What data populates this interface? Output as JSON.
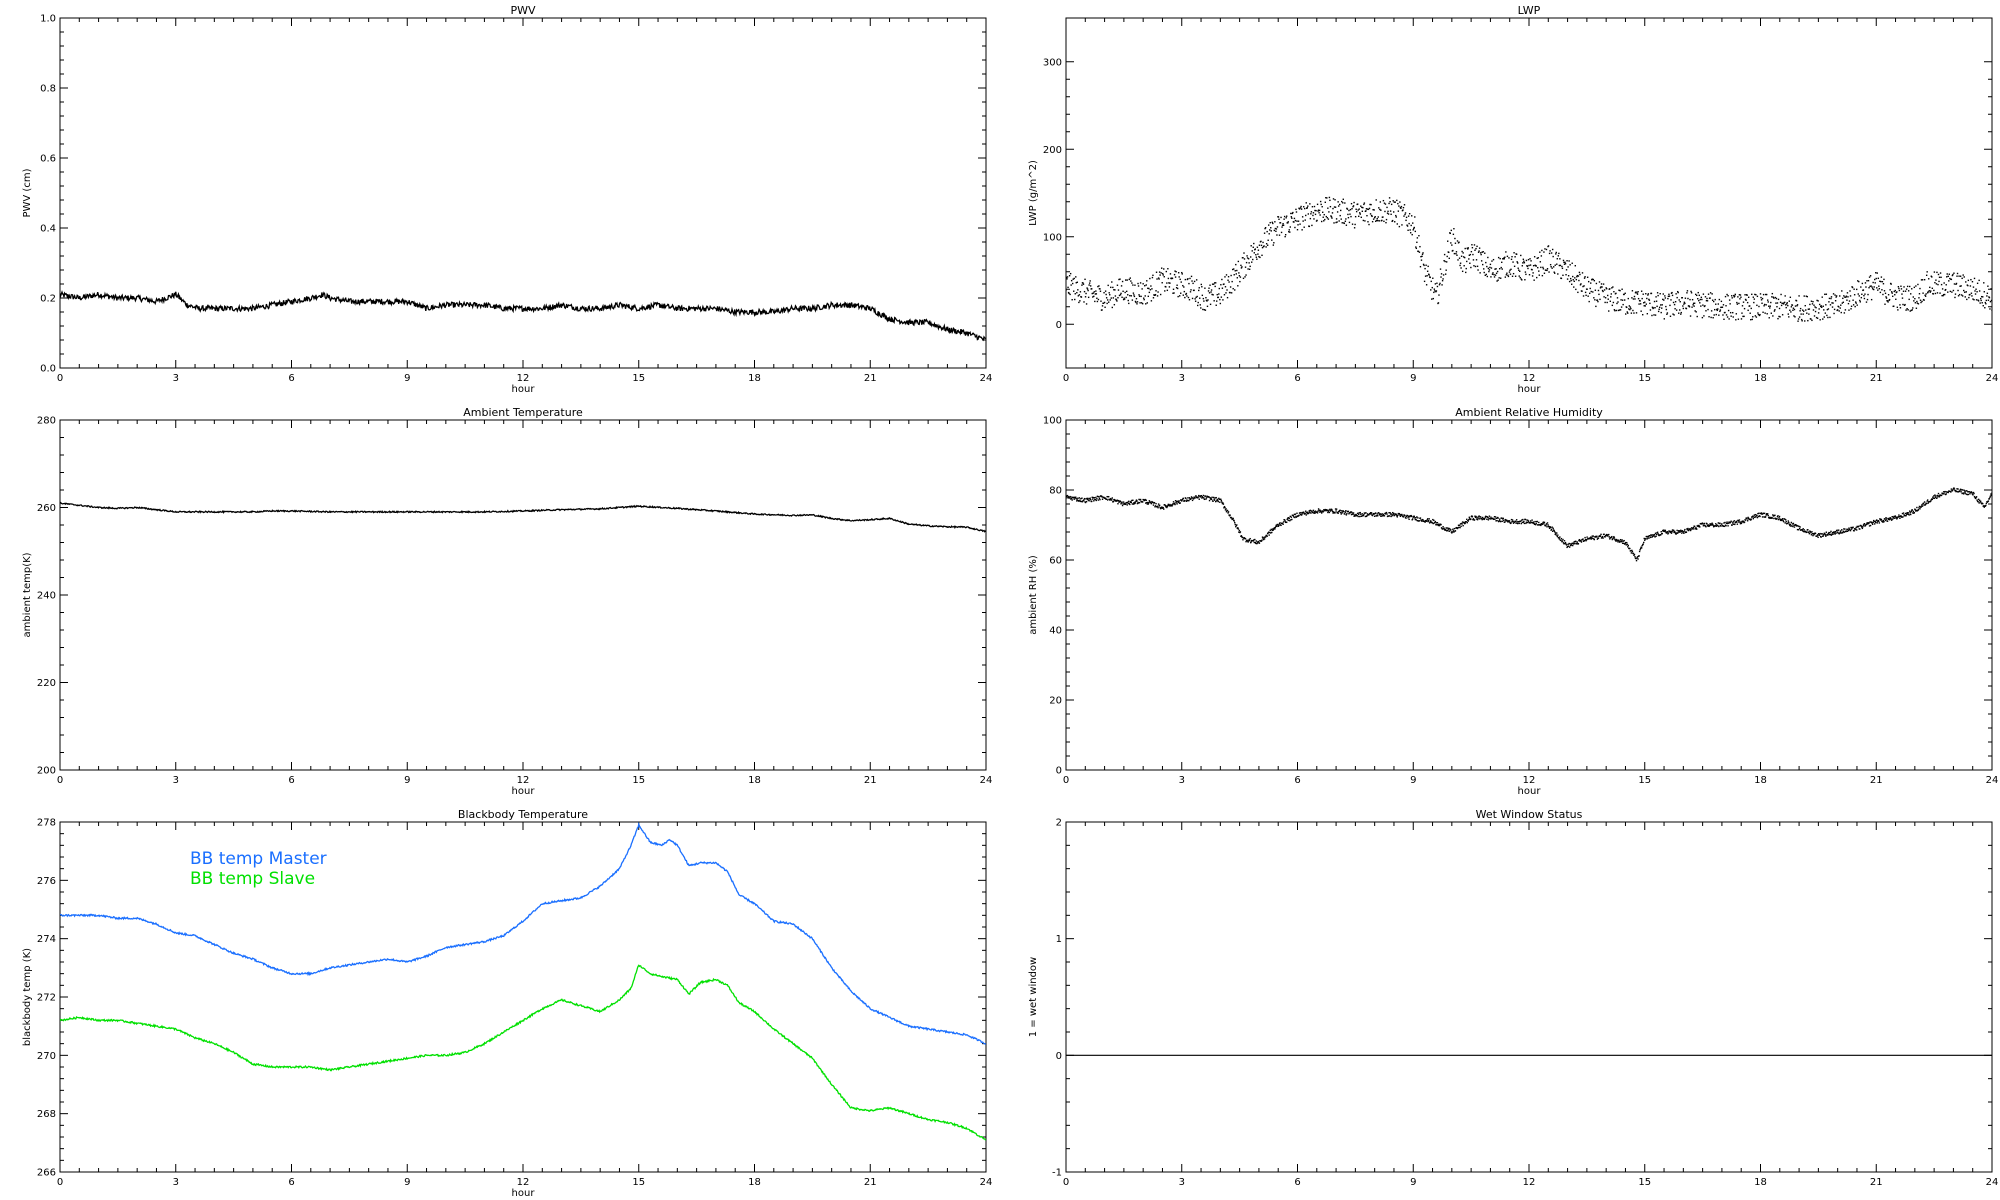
{
  "chart_data": [
    {
      "type": "line",
      "title": "PWV",
      "xlabel": "hour",
      "ylabel": "PWV (cm)",
      "xlim": [
        0,
        24
      ],
      "ylim": [
        0.0,
        1.0
      ],
      "xticks": [
        0,
        3,
        6,
        9,
        12,
        15,
        18,
        21,
        24
      ],
      "yticks": [
        0.0,
        0.2,
        0.4,
        0.6,
        0.8,
        1.0
      ],
      "ytick_labels": [
        "0.0",
        "0.2",
        "0.4",
        "0.6",
        "0.8",
        "1.0"
      ],
      "noise": 0.008,
      "series": [
        {
          "color": "#000000",
          "x": [
            0,
            0.5,
            1,
            1.5,
            2,
            2.5,
            3,
            3.3,
            3.6,
            4,
            4.5,
            5,
            5.5,
            6,
            6.5,
            6.8,
            7,
            7.5,
            8,
            8.5,
            9,
            9.5,
            10,
            10.5,
            11,
            11.5,
            12,
            12.5,
            13,
            13.5,
            14,
            14.5,
            15,
            15.5,
            16,
            16.5,
            17,
            17.5,
            18,
            18.5,
            19,
            19.5,
            20,
            20.5,
            21,
            21.5,
            22,
            22.5,
            23,
            23.5,
            24
          ],
          "y": [
            0.21,
            0.2,
            0.21,
            0.2,
            0.2,
            0.19,
            0.21,
            0.18,
            0.17,
            0.17,
            0.17,
            0.17,
            0.18,
            0.19,
            0.2,
            0.21,
            0.2,
            0.19,
            0.19,
            0.19,
            0.19,
            0.17,
            0.18,
            0.18,
            0.18,
            0.17,
            0.17,
            0.17,
            0.18,
            0.17,
            0.17,
            0.18,
            0.17,
            0.18,
            0.17,
            0.17,
            0.17,
            0.16,
            0.16,
            0.16,
            0.17,
            0.17,
            0.18,
            0.18,
            0.17,
            0.14,
            0.13,
            0.13,
            0.11,
            0.1,
            0.08
          ]
        }
      ]
    },
    {
      "type": "scatter",
      "title": "LWP",
      "xlabel": "hour",
      "ylabel": "LWP (g/m^2)",
      "xlim": [
        0,
        24
      ],
      "ylim": [
        -50,
        350
      ],
      "xticks": [
        0,
        3,
        6,
        9,
        12,
        15,
        18,
        21,
        24
      ],
      "yticks": [
        0,
        100,
        200,
        300
      ],
      "ytick_labels": [
        "0",
        "100",
        "200",
        "300"
      ],
      "noise": 15,
      "series": [
        {
          "color": "#000000",
          "x": [
            0,
            0.3,
            0.6,
            1,
            1.5,
            2,
            2.5,
            3,
            3.3,
            3.6,
            4,
            4.5,
            5,
            5.5,
            6,
            6.5,
            7,
            7.5,
            8,
            8.5,
            9,
            9.3,
            9.6,
            10,
            10.3,
            10.6,
            11,
            11.5,
            12,
            12.5,
            13,
            13.5,
            14,
            14.5,
            15,
            15.5,
            16,
            16.5,
            17,
            17.5,
            18,
            18.5,
            19,
            19.5,
            20,
            20.5,
            21,
            21.3,
            21.6,
            22,
            22.3,
            22.6,
            23,
            23.5,
            24
          ],
          "y": [
            45,
            40,
            35,
            30,
            40,
            35,
            50,
            45,
            40,
            30,
            35,
            60,
            90,
            110,
            120,
            130,
            130,
            125,
            130,
            130,
            115,
            60,
            30,
            100,
            70,
            80,
            60,
            70,
            60,
            75,
            60,
            40,
            30,
            25,
            25,
            20,
            25,
            22,
            20,
            20,
            20,
            20,
            18,
            20,
            20,
            35,
            45,
            35,
            30,
            30,
            45,
            45,
            45,
            40,
            30
          ]
        }
      ]
    },
    {
      "type": "line",
      "title": "Ambient Temperature",
      "xlabel": "hour",
      "ylabel": "ambient temp(K)",
      "xlim": [
        0,
        24
      ],
      "ylim": [
        200,
        280
      ],
      "xticks": [
        0,
        3,
        6,
        9,
        12,
        15,
        18,
        21,
        24
      ],
      "yticks": [
        200,
        220,
        240,
        260,
        280
      ],
      "ytick_labels": [
        "200",
        "220",
        "240",
        "260",
        "280"
      ],
      "noise": 0.15,
      "series": [
        {
          "color": "#000000",
          "x": [
            0,
            0.5,
            1,
            1.5,
            2,
            2.5,
            3,
            4,
            5,
            5.5,
            6,
            7,
            8,
            9,
            10,
            11,
            12,
            13,
            14,
            14.5,
            15,
            16,
            17,
            18,
            19,
            19.5,
            20,
            20.5,
            21,
            21.5,
            22,
            22.5,
            23,
            23.5,
            24
          ],
          "y": [
            261,
            260.5,
            260,
            259.8,
            260,
            259.5,
            259,
            259,
            259,
            259.2,
            259.2,
            259,
            259,
            259,
            259,
            259,
            259.2,
            259.5,
            259.7,
            260,
            260.3,
            259.8,
            259.2,
            258.5,
            258.2,
            258.3,
            257.5,
            257,
            257.2,
            257.5,
            256.2,
            255.8,
            255.6,
            255.5,
            254.5
          ]
        }
      ]
    },
    {
      "type": "scatter",
      "title": "Ambient Relative Humidity",
      "xlabel": "hour",
      "ylabel": "ambient RH (%)",
      "xlim": [
        0,
        24
      ],
      "ylim": [
        0,
        100
      ],
      "xticks": [
        0,
        3,
        6,
        9,
        12,
        15,
        18,
        21,
        24
      ],
      "yticks": [
        0,
        20,
        40,
        60,
        80,
        100
      ],
      "ytick_labels": [
        "0",
        "20",
        "40",
        "60",
        "80",
        "100"
      ],
      "noise": 0.6,
      "series": [
        {
          "color": "#000000",
          "x": [
            0,
            0.5,
            1,
            1.5,
            2,
            2.5,
            3,
            3.5,
            4,
            4.3,
            4.6,
            5,
            5.5,
            6,
            6.5,
            7,
            7.5,
            8,
            8.5,
            9,
            9.5,
            10,
            10.5,
            11,
            11.5,
            12,
            12.5,
            13,
            13.5,
            14,
            14.5,
            14.8,
            15,
            15.5,
            16,
            16.5,
            17,
            17.5,
            18,
            18.5,
            19,
            19.5,
            20,
            20.5,
            21,
            21.5,
            22,
            22.5,
            23,
            23.5,
            23.8,
            24
          ],
          "y": [
            78,
            77,
            78,
            76,
            77,
            75,
            77,
            78,
            77,
            72,
            66,
            65,
            70,
            73,
            74,
            74,
            73,
            73,
            73,
            72,
            71,
            68,
            72,
            72,
            71,
            71,
            70,
            64,
            66,
            67,
            65,
            60,
            66,
            68,
            68,
            70,
            70,
            71,
            73,
            72,
            69,
            67,
            68,
            69,
            71,
            72,
            74,
            78,
            80,
            79,
            75,
            79
          ]
        }
      ]
    },
    {
      "type": "line",
      "title": "Blackbody Temperature",
      "xlabel": "hour",
      "ylabel": "blackbody temp (K)",
      "xlim": [
        0,
        24
      ],
      "ylim": [
        266,
        278
      ],
      "xticks": [
        0,
        3,
        6,
        9,
        12,
        15,
        18,
        21,
        24
      ],
      "yticks": [
        266,
        268,
        270,
        272,
        274,
        276,
        278
      ],
      "ytick_labels": [
        "266",
        "268",
        "270",
        "272",
        "274",
        "276",
        "278"
      ],
      "noise": 0.03,
      "legend": [
        {
          "label": "BB temp Master",
          "color": "#1a6fff"
        },
        {
          "label": "BB temp Slave",
          "color": "#00e000"
        }
      ],
      "series": [
        {
          "name": "BB temp Master",
          "color": "#1a6fff",
          "x": [
            0,
            0.5,
            1,
            1.5,
            2,
            2.5,
            3,
            3.5,
            4,
            4.5,
            5,
            5.5,
            6,
            6.5,
            7,
            7.5,
            8,
            8.5,
            9,
            9.5,
            10,
            10.5,
            11,
            11.5,
            12,
            12.5,
            13,
            13.5,
            14,
            14.5,
            14.8,
            15,
            15.3,
            15.6,
            15.8,
            16,
            16.3,
            16.6,
            17,
            17.3,
            17.6,
            18,
            18.5,
            19,
            19.5,
            20,
            20.5,
            21,
            21.5,
            22,
            22.5,
            23,
            23.5,
            24
          ],
          "y": [
            274.8,
            274.8,
            274.8,
            274.7,
            274.7,
            274.5,
            274.2,
            274.1,
            273.8,
            273.5,
            273.3,
            273,
            272.8,
            272.8,
            273,
            273.1,
            273.2,
            273.3,
            273.2,
            273.4,
            273.7,
            273.8,
            273.9,
            274.1,
            274.6,
            275.2,
            275.3,
            275.4,
            275.8,
            276.4,
            277.2,
            277.9,
            277.3,
            277.2,
            277.4,
            277.2,
            276.5,
            276.6,
            276.6,
            276.3,
            275.5,
            275.2,
            274.6,
            274.5,
            274,
            273,
            272.2,
            271.6,
            271.3,
            271,
            270.9,
            270.8,
            270.7,
            270.4
          ]
        },
        {
          "name": "BB temp Slave",
          "color": "#00e000",
          "x": [
            0,
            0.5,
            1,
            1.5,
            2,
            2.5,
            3,
            3.5,
            4,
            4.5,
            5,
            5.5,
            6,
            6.5,
            7,
            7.5,
            8,
            8.5,
            9,
            9.5,
            10,
            10.5,
            11,
            11.5,
            12,
            12.5,
            13,
            13.5,
            14,
            14.5,
            14.8,
            15,
            15.3,
            15.6,
            16,
            16.3,
            16.6,
            17,
            17.3,
            17.6,
            18,
            18.5,
            19,
            19.5,
            20,
            20.5,
            21,
            21.5,
            22,
            22.5,
            23,
            23.5,
            24
          ],
          "y": [
            271.2,
            271.3,
            271.2,
            271.2,
            271.1,
            271,
            270.9,
            270.6,
            270.4,
            270.1,
            269.7,
            269.6,
            269.6,
            269.6,
            269.5,
            269.6,
            269.7,
            269.8,
            269.9,
            270,
            270,
            270.1,
            270.4,
            270.8,
            271.2,
            271.6,
            271.9,
            271.7,
            271.5,
            271.9,
            272.3,
            273.1,
            272.8,
            272.7,
            272.6,
            272.1,
            272.5,
            272.6,
            272.4,
            271.8,
            271.5,
            270.9,
            270.4,
            269.9,
            269,
            268.2,
            268.1,
            268.2,
            268,
            267.8,
            267.7,
            267.5,
            267.1
          ]
        }
      ]
    },
    {
      "type": "line",
      "title": "Wet Window Status",
      "xlabel": "",
      "ylabel": "1 = wet window",
      "xlim": [
        0,
        24
      ],
      "ylim": [
        -1,
        2
      ],
      "xticks": [
        0,
        3,
        6,
        9,
        12,
        15,
        18,
        21,
        24
      ],
      "yticks": [
        -1,
        0,
        1,
        2
      ],
      "ytick_labels": [
        "-1",
        "0",
        "1",
        "2"
      ],
      "noise": 0,
      "series": [
        {
          "color": "#000000",
          "x": [
            0,
            24
          ],
          "y": [
            0,
            0
          ]
        }
      ]
    }
  ]
}
